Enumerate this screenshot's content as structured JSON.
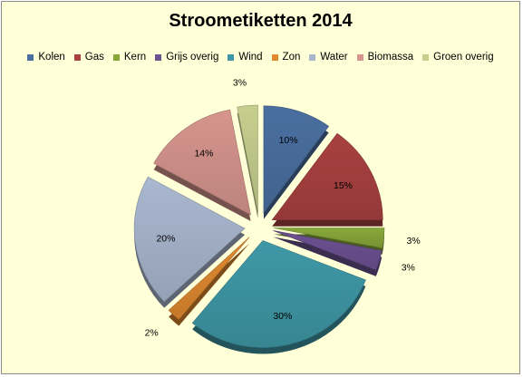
{
  "chart_data": {
    "type": "pie",
    "title": "Stroometiketten 2014",
    "legend_position": "top",
    "exploded": true,
    "style": "3d",
    "slices": [
      {
        "name": "Kolen",
        "value": 10,
        "label": "10%",
        "color": "#4a6fa0"
      },
      {
        "name": "Gas",
        "value": 15,
        "label": "15%",
        "color": "#a84140"
      },
      {
        "name": "Kern",
        "value": 3,
        "label": "3%",
        "color": "#87a73a"
      },
      {
        "name": "Grijs overig",
        "value": 3,
        "label": "3%",
        "color": "#6c5191"
      },
      {
        "name": "Wind",
        "value": 30,
        "label": "30%",
        "color": "#3f98a6"
      },
      {
        "name": "Zon",
        "value": 2,
        "label": "2%",
        "color": "#e08930"
      },
      {
        "name": "Water",
        "value": 20,
        "label": "20%",
        "color": "#a9b7cf"
      },
      {
        "name": "Biomassa",
        "value": 14,
        "label": "14%",
        "color": "#d6958e"
      },
      {
        "name": "Groen overig",
        "value": 3,
        "label": "3%",
        "color": "#c6cf8e"
      }
    ]
  }
}
